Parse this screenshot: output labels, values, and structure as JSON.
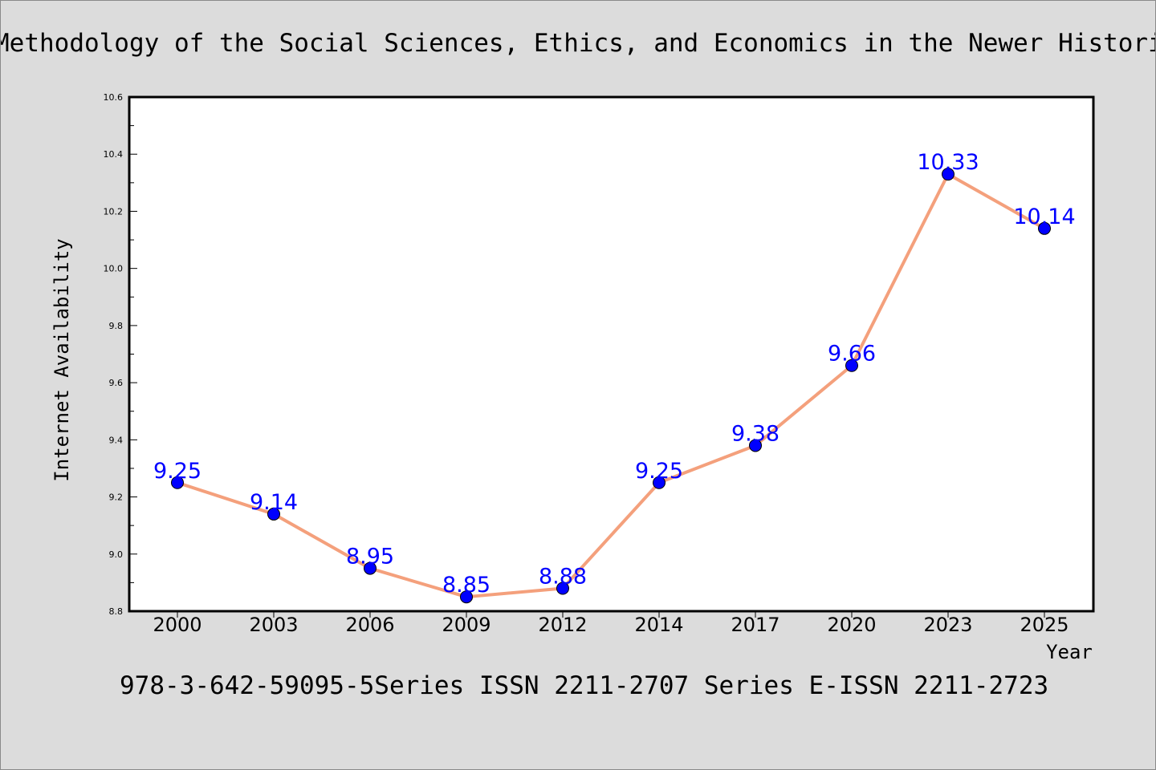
{
  "chart_data": {
    "type": "line",
    "title": "Methodology of the Social Sciences, Ethics, and Economics in the Newer Historical School",
    "xlabel": "Year",
    "ylabel": "Internet Availability",
    "categories": [
      "2000",
      "2003",
      "2006",
      "2009",
      "2012",
      "2014",
      "2017",
      "2020",
      "2023",
      "2025"
    ],
    "series": [
      {
        "values": [
          9.25,
          9.14,
          8.95,
          8.85,
          8.88,
          9.25,
          9.38,
          9.66,
          10.33,
          10.14
        ],
        "labels": [
          "9.25",
          "9.14",
          "8.95",
          "8.85",
          "8.88",
          "9.25",
          "9.38",
          "9.66",
          "10.33",
          "10.14"
        ]
      }
    ],
    "ylim": [
      8.8,
      10.6
    ],
    "yticks": [
      "8.8",
      "9.0",
      "9.2",
      "9.4",
      "9.6",
      "9.8",
      "10.0",
      "10.2",
      "10.4",
      "10.6"
    ],
    "grid": false,
    "legend": "none",
    "colors": {
      "line": "#f4a07c",
      "marker": "#0000ff",
      "data_label": "#0000ff",
      "background": "#dcdcdc",
      "plot_background": "#ffffff"
    }
  },
  "footer": "978-3-642-59095-5Series ISSN 2211-2707 Series E-ISSN 2211-2723"
}
